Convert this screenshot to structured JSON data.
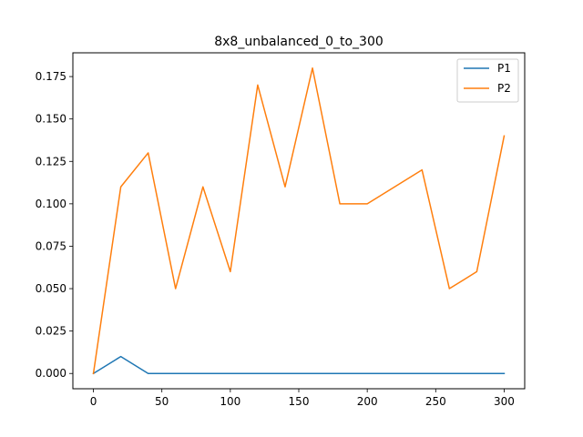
{
  "chart_data": {
    "type": "line",
    "title": "8x8_unbalanced_0_to_300",
    "xlabel": "",
    "ylabel": "",
    "x": [
      0,
      20,
      40,
      60,
      80,
      100,
      120,
      140,
      160,
      180,
      200,
      220,
      240,
      260,
      280,
      300
    ],
    "series": [
      {
        "name": "P1",
        "color": "#1f77b4",
        "values": [
          0.0,
          0.01,
          0.0,
          0.0,
          0.0,
          0.0,
          0.0,
          0.0,
          0.0,
          0.0,
          0.0,
          0.0,
          0.0,
          0.0,
          0.0,
          0.0
        ]
      },
      {
        "name": "P2",
        "color": "#ff7f0e",
        "values": [
          0.0,
          0.11,
          0.13,
          0.05,
          0.11,
          0.06,
          0.17,
          0.11,
          0.18,
          0.1,
          0.1,
          0.11,
          0.12,
          0.05,
          0.06,
          0.14
        ]
      }
    ],
    "xlim": [
      -15,
      315
    ],
    "ylim": [
      -0.009,
      0.189
    ],
    "xticks": [
      0,
      50,
      100,
      150,
      200,
      250,
      300
    ],
    "xtick_labels": [
      "0",
      "50",
      "100",
      "150",
      "200",
      "250",
      "300"
    ],
    "yticks": [
      0.0,
      0.025,
      0.05,
      0.075,
      0.1,
      0.125,
      0.15,
      0.175
    ],
    "ytick_labels": [
      "0.000",
      "0.025",
      "0.050",
      "0.075",
      "0.100",
      "0.125",
      "0.150",
      "0.175"
    ],
    "grid": false,
    "legend_position": "top-right"
  }
}
